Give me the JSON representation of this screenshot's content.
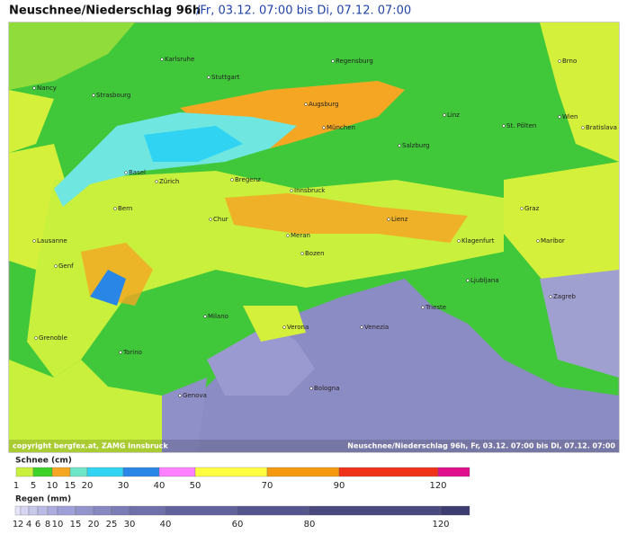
{
  "header": {
    "title": "Neuschnee/Niederschlag 96h",
    "subtitle": "/Fr, 03.12. 07:00 bis Di, 07.12. 07:00"
  },
  "map": {
    "cities": [
      "Nancy",
      "Karlsruhe",
      "Stuttgart",
      "Regensburg",
      "Brno",
      "Strasbourg",
      "Augsburg",
      "Linz",
      "Wien",
      "St. Pölten",
      "Bratislava",
      "München",
      "Salzburg",
      "Basel",
      "Zürich",
      "Bregenz",
      "Innsbruck",
      "Bern",
      "Chur",
      "Graz",
      "Lienz",
      "Lausanne",
      "Genf",
      "Meran",
      "Bozen",
      "Klagenfurt",
      "Maribor",
      "Ljubljana",
      "Zagreb",
      "Milano",
      "Trieste",
      "Verona",
      "Venezia",
      "Grenoble",
      "Torino",
      "Genova",
      "Bologna"
    ],
    "copyright": "copyright bergfex.at, ZAMG Innsbruck",
    "caption": "Neuschnee/Niederschlag 96h, Fr, 03.12. 07:00 bis Di, 07.12. 07:00"
  },
  "legend": {
    "snow": {
      "label": "Schnee (cm)",
      "ticks": [
        1,
        5,
        10,
        15,
        20,
        30,
        40,
        50,
        70,
        90,
        120
      ],
      "colors": [
        "#c8f03c",
        "#3cd22a",
        "#f5a623",
        "#6fe6c8",
        "#30d4f2",
        "#2a86e6",
        "#ff80ff",
        "#ffff40",
        "#f59a10",
        "#f0321a",
        "#e0108c"
      ]
    },
    "rain": {
      "label": "Regen (mm)",
      "ticks": [
        1,
        2,
        4,
        6,
        8,
        10,
        15,
        20,
        25,
        30,
        40,
        60,
        80,
        120
      ],
      "colors": [
        "#e4e4f6",
        "#d6d6f0",
        "#c8c8ea",
        "#babae4",
        "#acacde",
        "#a0a0d8",
        "#9494cc",
        "#8888c0",
        "#7c7cb6",
        "#7070aa",
        "#62629c",
        "#56568e",
        "#4a4a80",
        "#3c3c70"
      ]
    }
  }
}
